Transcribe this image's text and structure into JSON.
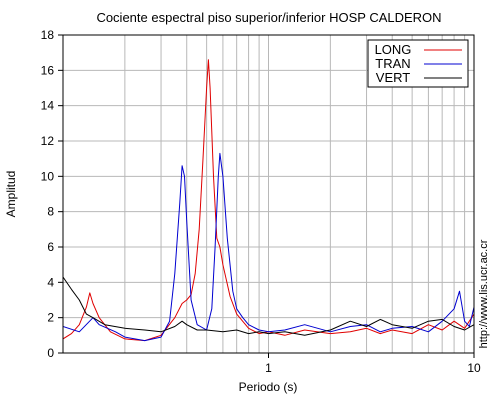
{
  "chart_data": {
    "type": "line",
    "title": "Cociente espectral piso superior/inferior  HOSP CALDERON",
    "xlabel": "Periodo (s)",
    "ylabel": "Amplitud",
    "xscale": "log",
    "xlim": [
      0.1,
      10
    ],
    "ylim": [
      0,
      18
    ],
    "x_tick_labels": [
      {
        "value": 1,
        "label": "1"
      },
      {
        "value": 10,
        "label": "10"
      }
    ],
    "y_ticks": [
      0,
      2,
      4,
      6,
      8,
      10,
      12,
      14,
      16,
      18
    ],
    "grid": true,
    "legend_position": "top-right",
    "credit": "http://www.lis.ucr.ac.cr",
    "series": [
      {
        "name": "LONG",
        "color": "#e00000",
        "points": [
          [
            0.1,
            0.8
          ],
          [
            0.11,
            1.1
          ],
          [
            0.12,
            1.6
          ],
          [
            0.13,
            2.6
          ],
          [
            0.135,
            3.4
          ],
          [
            0.14,
            2.8
          ],
          [
            0.15,
            2.0
          ],
          [
            0.17,
            1.2
          ],
          [
            0.2,
            0.8
          ],
          [
            0.25,
            0.7
          ],
          [
            0.3,
            1.0
          ],
          [
            0.35,
            2.0
          ],
          [
            0.38,
            2.8
          ],
          [
            0.4,
            3.0
          ],
          [
            0.42,
            3.3
          ],
          [
            0.44,
            4.5
          ],
          [
            0.46,
            7.0
          ],
          [
            0.48,
            11.0
          ],
          [
            0.5,
            15.0
          ],
          [
            0.51,
            16.6
          ],
          [
            0.52,
            15.0
          ],
          [
            0.54,
            10.0
          ],
          [
            0.56,
            6.5
          ],
          [
            0.58,
            6.0
          ],
          [
            0.6,
            5.0
          ],
          [
            0.65,
            3.2
          ],
          [
            0.7,
            2.2
          ],
          [
            0.8,
            1.4
          ],
          [
            0.9,
            1.1
          ],
          [
            1.0,
            1.2
          ],
          [
            1.2,
            1.0
          ],
          [
            1.5,
            1.3
          ],
          [
            2.0,
            1.1
          ],
          [
            2.5,
            1.2
          ],
          [
            3.0,
            1.4
          ],
          [
            3.5,
            1.1
          ],
          [
            4.0,
            1.3
          ],
          [
            5.0,
            1.1
          ],
          [
            6.0,
            1.6
          ],
          [
            7.0,
            1.3
          ],
          [
            8.0,
            1.8
          ],
          [
            9.0,
            1.4
          ],
          [
            10.0,
            2.2
          ]
        ]
      },
      {
        "name": "TRAN",
        "color": "#0000d0",
        "points": [
          [
            0.1,
            1.5
          ],
          [
            0.12,
            1.2
          ],
          [
            0.14,
            2.0
          ],
          [
            0.15,
            1.6
          ],
          [
            0.18,
            1.2
          ],
          [
            0.2,
            0.9
          ],
          [
            0.25,
            0.7
          ],
          [
            0.3,
            0.9
          ],
          [
            0.33,
            1.8
          ],
          [
            0.35,
            4.5
          ],
          [
            0.37,
            8.5
          ],
          [
            0.38,
            10.6
          ],
          [
            0.39,
            10.0
          ],
          [
            0.4,
            7.5
          ],
          [
            0.42,
            3.0
          ],
          [
            0.45,
            1.6
          ],
          [
            0.5,
            1.3
          ],
          [
            0.53,
            2.5
          ],
          [
            0.55,
            6.0
          ],
          [
            0.57,
            10.0
          ],
          [
            0.58,
            11.3
          ],
          [
            0.6,
            10.0
          ],
          [
            0.63,
            6.5
          ],
          [
            0.67,
            3.5
          ],
          [
            0.7,
            2.5
          ],
          [
            0.75,
            2.0
          ],
          [
            0.8,
            1.6
          ],
          [
            0.9,
            1.3
          ],
          [
            1.0,
            1.2
          ],
          [
            1.2,
            1.3
          ],
          [
            1.5,
            1.6
          ],
          [
            2.0,
            1.2
          ],
          [
            2.5,
            1.5
          ],
          [
            3.0,
            1.6
          ],
          [
            3.5,
            1.2
          ],
          [
            4.0,
            1.4
          ],
          [
            5.0,
            1.5
          ],
          [
            6.0,
            1.2
          ],
          [
            7.0,
            1.8
          ],
          [
            8.0,
            2.5
          ],
          [
            8.5,
            3.5
          ],
          [
            9.0,
            1.8
          ],
          [
            9.5,
            1.5
          ],
          [
            10.0,
            2.6
          ]
        ]
      },
      {
        "name": "VERT",
        "color": "#000000",
        "points": [
          [
            0.1,
            4.3
          ],
          [
            0.11,
            3.6
          ],
          [
            0.12,
            3.0
          ],
          [
            0.13,
            2.2
          ],
          [
            0.14,
            2.0
          ],
          [
            0.16,
            1.6
          ],
          [
            0.2,
            1.4
          ],
          [
            0.25,
            1.3
          ],
          [
            0.3,
            1.2
          ],
          [
            0.35,
            1.5
          ],
          [
            0.38,
            1.8
          ],
          [
            0.4,
            1.6
          ],
          [
            0.45,
            1.3
          ],
          [
            0.5,
            1.3
          ],
          [
            0.6,
            1.2
          ],
          [
            0.7,
            1.3
          ],
          [
            0.8,
            1.1
          ],
          [
            0.9,
            1.2
          ],
          [
            1.0,
            1.1
          ],
          [
            1.2,
            1.2
          ],
          [
            1.5,
            1.0
          ],
          [
            2.0,
            1.3
          ],
          [
            2.5,
            1.8
          ],
          [
            3.0,
            1.5
          ],
          [
            3.5,
            1.9
          ],
          [
            4.0,
            1.6
          ],
          [
            5.0,
            1.4
          ],
          [
            6.0,
            1.8
          ],
          [
            7.0,
            1.9
          ],
          [
            8.0,
            1.5
          ],
          [
            9.0,
            1.3
          ],
          [
            10.0,
            1.6
          ]
        ]
      }
    ]
  }
}
